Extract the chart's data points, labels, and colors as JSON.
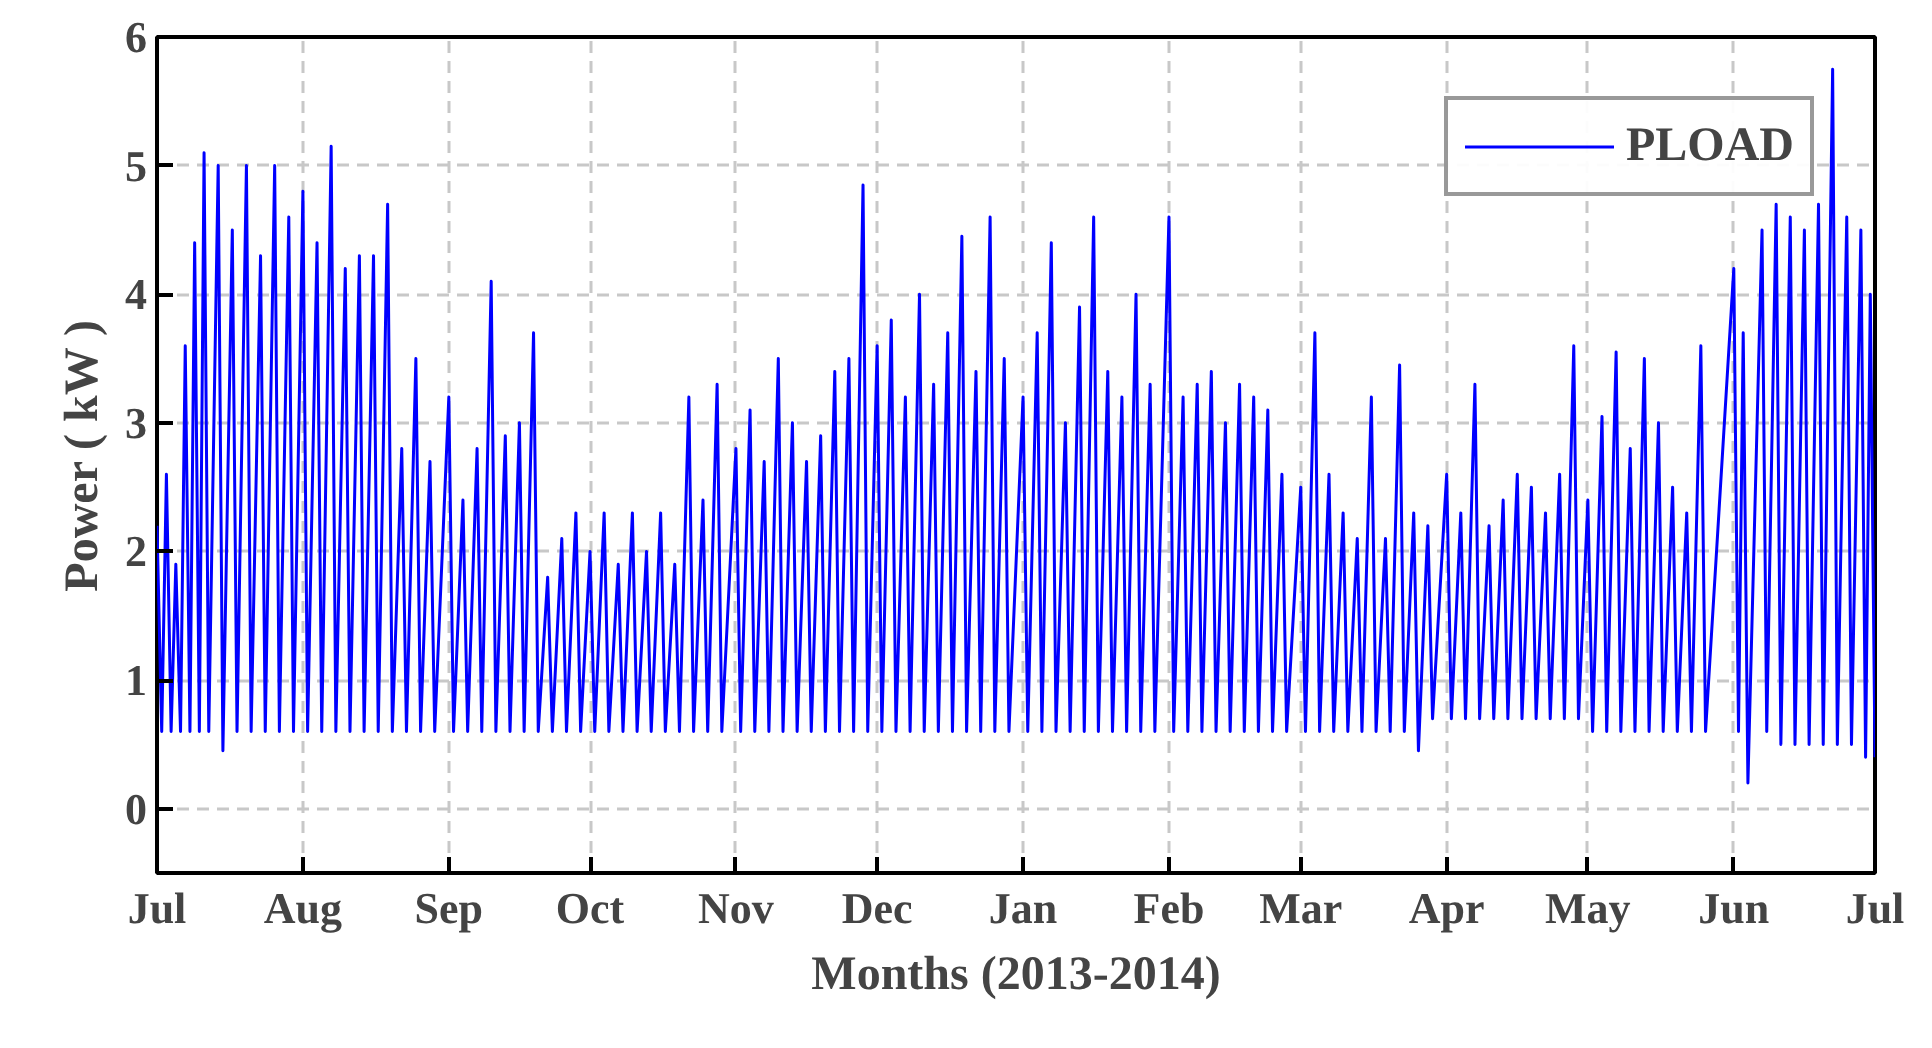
{
  "chart_data": {
    "type": "line",
    "xlabel": "Months (2013-2014)",
    "ylabel": "Power ( kW )",
    "xlim": [
      "2013-07-01",
      "2014-07-01"
    ],
    "ylim": [
      -0.5,
      6
    ],
    "xticks": [
      {
        "value": "2013-07-01",
        "label": "Jul"
      },
      {
        "value": "2013-08-01",
        "label": "Aug"
      },
      {
        "value": "2013-09-01",
        "label": "Sep"
      },
      {
        "value": "2013-10-01",
        "label": "Oct"
      },
      {
        "value": "2013-11-01",
        "label": "Nov"
      },
      {
        "value": "2013-12-01",
        "label": "Dec"
      },
      {
        "value": "2014-01-01",
        "label": "Jan"
      },
      {
        "value": "2014-02-01",
        "label": "Feb"
      },
      {
        "value": "2014-03-01",
        "label": "Mar"
      },
      {
        "value": "2014-04-01",
        "label": "Apr"
      },
      {
        "value": "2014-05-01",
        "label": "May"
      },
      {
        "value": "2014-06-01",
        "label": "Jun"
      },
      {
        "value": "2014-07-01",
        "label": "Jul"
      }
    ],
    "yticks": [
      0,
      1,
      2,
      3,
      4,
      5,
      6
    ],
    "grid": true,
    "legend": "top right",
    "marker": "none",
    "line_style": "solid",
    "series": [
      {
        "name": "PLOAD",
        "color": "#0000ff",
        "x": [
          "2013-07-01",
          "2013-07-02",
          "2013-07-03",
          "2013-07-04",
          "2013-07-05",
          "2013-07-06",
          "2013-07-07",
          "2013-07-08",
          "2013-07-09",
          "2013-07-10",
          "2013-07-11",
          "2013-07-12",
          "2013-07-14",
          "2013-07-15",
          "2013-07-17",
          "2013-07-18",
          "2013-07-20",
          "2013-07-21",
          "2013-07-23",
          "2013-07-24",
          "2013-07-26",
          "2013-07-27",
          "2013-07-29",
          "2013-07-30",
          "2013-08-01",
          "2013-08-02",
          "2013-08-04",
          "2013-08-05",
          "2013-08-07",
          "2013-08-08",
          "2013-08-10",
          "2013-08-11",
          "2013-08-13",
          "2013-08-14",
          "2013-08-16",
          "2013-08-17",
          "2013-08-19",
          "2013-08-20",
          "2013-08-22",
          "2013-08-23",
          "2013-08-25",
          "2013-08-26",
          "2013-08-28",
          "2013-08-29",
          "2013-09-01",
          "2013-09-02",
          "2013-09-04",
          "2013-09-05",
          "2013-09-07",
          "2013-09-08",
          "2013-09-10",
          "2013-09-11",
          "2013-09-13",
          "2013-09-14",
          "2013-09-16",
          "2013-09-17",
          "2013-09-19",
          "2013-09-20",
          "2013-09-22",
          "2013-09-23",
          "2013-09-25",
          "2013-09-26",
          "2013-09-28",
          "2013-09-29",
          "2013-10-01",
          "2013-10-02",
          "2013-10-04",
          "2013-10-05",
          "2013-10-07",
          "2013-10-08",
          "2013-10-10",
          "2013-10-11",
          "2013-10-13",
          "2013-10-14",
          "2013-10-16",
          "2013-10-17",
          "2013-10-19",
          "2013-10-20",
          "2013-10-22",
          "2013-10-23",
          "2013-10-25",
          "2013-10-26",
          "2013-10-28",
          "2013-10-29",
          "2013-11-01",
          "2013-11-02",
          "2013-11-04",
          "2013-11-05",
          "2013-11-07",
          "2013-11-08",
          "2013-11-10",
          "2013-11-11",
          "2013-11-13",
          "2013-11-14",
          "2013-11-16",
          "2013-11-17",
          "2013-11-19",
          "2013-11-20",
          "2013-11-22",
          "2013-11-23",
          "2013-11-25",
          "2013-11-26",
          "2013-11-28",
          "2013-11-29",
          "2013-12-01",
          "2013-12-02",
          "2013-12-04",
          "2013-12-05",
          "2013-12-07",
          "2013-12-08",
          "2013-12-10",
          "2013-12-11",
          "2013-12-13",
          "2013-12-14",
          "2013-12-16",
          "2013-12-17",
          "2013-12-19",
          "2013-12-20",
          "2013-12-22",
          "2013-12-23",
          "2013-12-25",
          "2013-12-26",
          "2013-12-28",
          "2013-12-29",
          "2014-01-01",
          "2014-01-02",
          "2014-01-04",
          "2014-01-05",
          "2014-01-07",
          "2014-01-08",
          "2014-01-10",
          "2014-01-11",
          "2014-01-13",
          "2014-01-14",
          "2014-01-16",
          "2014-01-17",
          "2014-01-19",
          "2014-01-20",
          "2014-01-22",
          "2014-01-23",
          "2014-01-25",
          "2014-01-26",
          "2014-01-28",
          "2014-01-29",
          "2014-02-01",
          "2014-02-02",
          "2014-02-04",
          "2014-02-05",
          "2014-02-07",
          "2014-02-08",
          "2014-02-10",
          "2014-02-11",
          "2014-02-13",
          "2014-02-14",
          "2014-02-16",
          "2014-02-17",
          "2014-02-19",
          "2014-02-20",
          "2014-02-22",
          "2014-02-23",
          "2014-02-25",
          "2014-02-26",
          "2014-03-01",
          "2014-03-02",
          "2014-03-04",
          "2014-03-05",
          "2014-03-07",
          "2014-03-08",
          "2014-03-10",
          "2014-03-11",
          "2014-03-13",
          "2014-03-14",
          "2014-03-16",
          "2014-03-17",
          "2014-03-19",
          "2014-03-20",
          "2014-03-22",
          "2014-03-23",
          "2014-03-25",
          "2014-03-26",
          "2014-03-28",
          "2014-03-29",
          "2014-04-01",
          "2014-04-02",
          "2014-04-04",
          "2014-04-05",
          "2014-04-07",
          "2014-04-08",
          "2014-04-10",
          "2014-04-11",
          "2014-04-13",
          "2014-04-14",
          "2014-04-16",
          "2014-04-17",
          "2014-04-19",
          "2014-04-20",
          "2014-04-22",
          "2014-04-23",
          "2014-04-25",
          "2014-04-26",
          "2014-04-28",
          "2014-04-29",
          "2014-05-01",
          "2014-05-02",
          "2014-05-04",
          "2014-05-05",
          "2014-05-07",
          "2014-05-08",
          "2014-05-10",
          "2014-05-11",
          "2014-05-13",
          "2014-05-14",
          "2014-05-16",
          "2014-05-17",
          "2014-05-19",
          "2014-05-20",
          "2014-05-22",
          "2014-05-23",
          "2014-05-25",
          "2014-05-26",
          "2014-06-01",
          "2014-06-02",
          "2014-06-03",
          "2014-06-04",
          "2014-06-07",
          "2014-06-08",
          "2014-06-10",
          "2014-06-11",
          "2014-06-13",
          "2014-06-14",
          "2014-06-16",
          "2014-06-17",
          "2014-06-19",
          "2014-06-20",
          "2014-06-22",
          "2014-06-23",
          "2014-06-25",
          "2014-06-26",
          "2014-06-28",
          "2014-06-29",
          "2014-06-30",
          "2014-07-01"
        ],
        "values": [
          2.2,
          0.6,
          2.6,
          0.6,
          1.9,
          0.6,
          3.6,
          0.6,
          4.4,
          0.6,
          5.1,
          0.6,
          5.0,
          0.45,
          4.5,
          0.6,
          5.0,
          0.6,
          4.3,
          0.6,
          5.0,
          0.6,
          4.6,
          0.6,
          4.8,
          0.6,
          4.4,
          0.6,
          5.15,
          0.6,
          4.2,
          0.6,
          4.3,
          0.6,
          4.3,
          0.6,
          4.7,
          0.6,
          2.8,
          0.6,
          3.5,
          0.6,
          2.7,
          0.6,
          3.2,
          0.6,
          2.4,
          0.6,
          2.8,
          0.6,
          4.1,
          0.6,
          2.9,
          0.6,
          3.0,
          0.6,
          3.7,
          0.6,
          1.8,
          0.6,
          2.1,
          0.6,
          2.3,
          0.6,
          2.0,
          0.6,
          2.3,
          0.6,
          1.9,
          0.6,
          2.3,
          0.6,
          2.0,
          0.6,
          2.3,
          0.6,
          1.9,
          0.6,
          3.2,
          0.6,
          2.4,
          0.6,
          3.3,
          0.6,
          2.8,
          0.6,
          3.1,
          0.6,
          2.7,
          0.6,
          3.5,
          0.6,
          3.0,
          0.6,
          2.7,
          0.6,
          2.9,
          0.6,
          3.4,
          0.6,
          3.5,
          0.6,
          4.85,
          0.6,
          3.6,
          0.6,
          3.8,
          0.6,
          3.2,
          0.6,
          4.0,
          0.6,
          3.3,
          0.6,
          3.7,
          0.6,
          4.45,
          0.6,
          3.4,
          0.6,
          4.6,
          0.6,
          3.5,
          0.6,
          3.2,
          0.6,
          3.7,
          0.6,
          4.4,
          0.6,
          3.0,
          0.6,
          3.9,
          0.6,
          4.6,
          0.6,
          3.4,
          0.6,
          3.2,
          0.6,
          4.0,
          0.6,
          3.3,
          0.6,
          4.6,
          0.6,
          3.2,
          0.6,
          3.3,
          0.6,
          3.4,
          0.6,
          3.0,
          0.6,
          3.3,
          0.6,
          3.2,
          0.6,
          3.1,
          0.6,
          2.6,
          0.6,
          2.5,
          0.6,
          3.7,
          0.6,
          2.6,
          0.6,
          2.3,
          0.6,
          2.1,
          0.6,
          3.2,
          0.6,
          2.1,
          0.6,
          3.45,
          0.6,
          2.3,
          0.45,
          2.2,
          0.7,
          2.6,
          0.7,
          2.3,
          0.7,
          3.3,
          0.7,
          2.2,
          0.7,
          2.4,
          0.7,
          2.6,
          0.7,
          2.5,
          0.7,
          2.3,
          0.7,
          2.6,
          0.7,
          3.6,
          0.7,
          2.4,
          0.6,
          3.05,
          0.6,
          3.55,
          0.6,
          2.8,
          0.6,
          3.5,
          0.6,
          3.0,
          0.6,
          2.5,
          0.6,
          2.3,
          0.6,
          3.6,
          0.6,
          4.2,
          0.6,
          3.7,
          0.2,
          4.5,
          0.6,
          4.7,
          0.5,
          4.6,
          0.5,
          4.5,
          0.5,
          4.7,
          0.5,
          5.75,
          0.5,
          4.6,
          0.5,
          4.5,
          0.4,
          4.0,
          0.4
        ]
      }
    ]
  }
}
